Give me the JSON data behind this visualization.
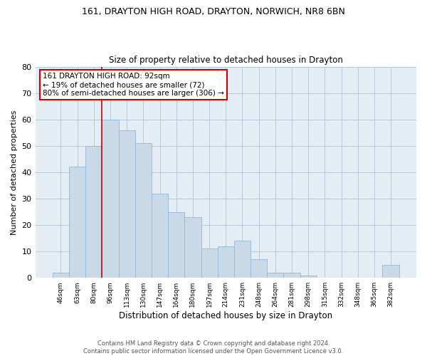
{
  "title1": "161, DRAYTON HIGH ROAD, DRAYTON, NORWICH, NR8 6BN",
  "title2": "Size of property relative to detached houses in Drayton",
  "xlabel": "Distribution of detached houses by size in Drayton",
  "ylabel": "Number of detached properties",
  "categories": [
    "46sqm",
    "63sqm",
    "80sqm",
    "96sqm",
    "113sqm",
    "130sqm",
    "147sqm",
    "164sqm",
    "180sqm",
    "197sqm",
    "214sqm",
    "231sqm",
    "248sqm",
    "264sqm",
    "281sqm",
    "298sqm",
    "315sqm",
    "332sqm",
    "348sqm",
    "365sqm",
    "382sqm"
  ],
  "values": [
    2,
    42,
    50,
    60,
    56,
    51,
    32,
    25,
    23,
    11,
    12,
    14,
    7,
    2,
    2,
    1,
    0,
    0,
    0,
    0,
    5
  ],
  "bar_color": "#c9d9e8",
  "bar_edge_color": "#8fb8d8",
  "grid_color": "#b8c8dc",
  "bg_color": "#e4ecf4",
  "vline_x": 2.5,
  "vline_color": "#cc0000",
  "annotation_text": "161 DRAYTON HIGH ROAD: 92sqm\n← 19% of detached houses are smaller (72)\n80% of semi-detached houses are larger (306) →",
  "annotation_box_color": "#ffffff",
  "annotation_box_edge_color": "#cc0000",
  "footnote": "Contains HM Land Registry data © Crown copyright and database right 2024.\nContains public sector information licensed under the Open Government Licence v3.0.",
  "ylim": [
    0,
    80
  ],
  "yticks": [
    0,
    10,
    20,
    30,
    40,
    50,
    60,
    70,
    80
  ]
}
